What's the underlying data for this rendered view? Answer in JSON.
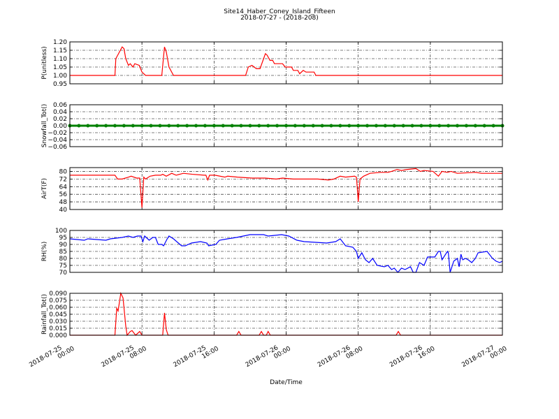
{
  "chart_data": [
    {
      "type": "line",
      "title": "Site14_Haber_Coney_Island_Fifteen",
      "subtitle": "2018-07-27 - (2018-208)",
      "ylabel": "P(unitless)",
      "color": "#ff0000",
      "grid": true,
      "xlim": [
        0,
        48
      ],
      "xticks": [
        0,
        8,
        16,
        24,
        32,
        40,
        48
      ],
      "ylim": [
        0.95,
        1.2
      ],
      "yticks": [
        0.95,
        {
          "value": 1.0,
          "label": "1.00"
        },
        1.05,
        {
          "value": 1.1,
          "label": "1.10"
        },
        1.15,
        {
          "value": 1.2,
          "label": "1.20"
        }
      ],
      "x": [
        0,
        5,
        5.1,
        5.8,
        6.0,
        6.2,
        6.5,
        6.7,
        7.0,
        7.2,
        7.7,
        8.0,
        8.4,
        10.2,
        10.5,
        10.7,
        11.0,
        11.5,
        19.5,
        19.8,
        20.2,
        20.7,
        21.1,
        21.5,
        21.7,
        21.9,
        22.2,
        22.5,
        22.7,
        23.6,
        23.9,
        24.6,
        24.8,
        25.3,
        25.5,
        25.9,
        26.2,
        27.1,
        27.3,
        48
      ],
      "values": [
        1.0,
        1.0,
        1.1,
        1.17,
        1.16,
        1.1,
        1.06,
        1.07,
        1.05,
        1.07,
        1.06,
        1.02,
        1.0,
        1.0,
        1.17,
        1.14,
        1.05,
        1.0,
        1.0,
        1.05,
        1.06,
        1.04,
        1.04,
        1.1,
        1.13,
        1.12,
        1.09,
        1.09,
        1.07,
        1.07,
        1.05,
        1.05,
        1.03,
        1.03,
        1.01,
        1.03,
        1.02,
        1.02,
        1.0,
        1.0
      ]
    },
    {
      "type": "line",
      "ylabel": "Snowfall_Tot()",
      "color": "#008000",
      "marker": "o",
      "grid": true,
      "xlim": [
        0,
        48
      ],
      "xticks": [
        0,
        8,
        16,
        24,
        32,
        40,
        48
      ],
      "ylim": [
        -0.06,
        0.06
      ],
      "yticks": [
        {
          "value": -0.06,
          "label": "−0.06"
        },
        {
          "value": -0.04,
          "label": "−0.04"
        },
        {
          "value": -0.02,
          "label": "−0.02"
        },
        {
          "value": 0,
          "label": "0.00"
        },
        0.02,
        0.04,
        0.06
      ],
      "x": [
        0,
        1,
        2,
        3,
        4,
        5,
        6,
        7,
        8,
        9,
        10,
        11,
        12,
        13,
        14,
        15,
        16,
        17,
        18,
        19,
        20,
        21,
        22,
        23,
        24,
        25,
        26,
        27,
        28,
        29,
        30,
        31,
        32,
        33,
        34,
        35,
        36,
        37,
        38,
        39,
        40,
        41,
        42,
        43,
        44,
        45,
        46,
        47,
        48
      ],
      "values": [
        0,
        0,
        0,
        0,
        0,
        0,
        0,
        0,
        0,
        0,
        0,
        0,
        0,
        0,
        0,
        0,
        0,
        0,
        0,
        0,
        0,
        0,
        0,
        0,
        0,
        0,
        0,
        0,
        0,
        0,
        0,
        0,
        0,
        0,
        0,
        0,
        0,
        0,
        0,
        0,
        0,
        0,
        0,
        0,
        0,
        0,
        0,
        0,
        0
      ]
    },
    {
      "type": "line",
      "ylabel": "AirT(F)",
      "color": "#ff0000",
      "grid": true,
      "xlim": [
        0,
        48
      ],
      "xticks": [
        0,
        8,
        16,
        24,
        32,
        40,
        48
      ],
      "ylim": [
        40,
        84
      ],
      "yticks": [
        40,
        48,
        56,
        64,
        72,
        80
      ],
      "x": [
        0,
        4.8,
        5.0,
        5.3,
        5.8,
        6.5,
        6.8,
        7.4,
        7.75,
        8.0,
        8.2,
        8.4,
        8.9,
        9.5,
        10.1,
        10.3,
        10.7,
        11.3,
        11.8,
        12.6,
        13.6,
        14.9,
        15.1,
        15.3,
        15.5,
        16.1,
        17.2,
        17.5,
        18.6,
        20.2,
        21.7,
        22.9,
        23.6,
        24.8,
        27.5,
        28.7,
        29.3,
        30.0,
        30.6,
        31.6,
        31.8,
        31.9,
        32.0,
        32.2,
        32.6,
        33.3,
        34.5,
        35.3,
        35.7,
        36.3,
        36.8,
        37.4,
        38.4,
        38.9,
        39.3,
        40.3,
        40.9,
        41.3,
        41.9,
        42.3,
        43.0,
        45.0,
        45.7,
        48
      ],
      "values": [
        76,
        76,
        76,
        72,
        72,
        74,
        75,
        73,
        73,
        42,
        74,
        72,
        75,
        76,
        76,
        77,
        75,
        78,
        76,
        78,
        77,
        76,
        76,
        71,
        76,
        76,
        74,
        75,
        74,
        73,
        73,
        72,
        73,
        72,
        72,
        71,
        72,
        75,
        74,
        75,
        74,
        62,
        48,
        72,
        75,
        78,
        79,
        79,
        80,
        82,
        81,
        82,
        83,
        80,
        81,
        80,
        75,
        80,
        79,
        80,
        78,
        79,
        78,
        78
      ]
    },
    {
      "type": "line",
      "ylabel": "RH(%)",
      "color": "#0000ff",
      "grid": true,
      "xlim": [
        0,
        48
      ],
      "xticks": [
        0,
        8,
        16,
        24,
        32,
        40,
        48
      ],
      "ylim": [
        70,
        100
      ],
      "yticks": [
        70,
        75,
        80,
        85,
        90,
        95,
        100
      ],
      "x": [
        0,
        1.6,
        2,
        4,
        4.5,
        5.8,
        6.5,
        7,
        7.5,
        7.9,
        8.1,
        8.3,
        8.8,
        9.2,
        9.5,
        9.8,
        10.2,
        10.4,
        10.8,
        11,
        11.5,
        12.4,
        12.8,
        13.5,
        14.5,
        15.2,
        15.4,
        16.2,
        16.6,
        17.5,
        18.5,
        20,
        21.5,
        22,
        23.5,
        24.3,
        25.2,
        26,
        28.5,
        29.5,
        30,
        30.6,
        31.4,
        31.8,
        32,
        32.4,
        32.8,
        33.2,
        33.6,
        34.1,
        34.9,
        35.3,
        35.7,
        36,
        36.4,
        36.8,
        37.2,
        37.8,
        38.1,
        38.4,
        38.8,
        39.3,
        39.7,
        40.5,
        40.9,
        41.1,
        41.3,
        41.9,
        42.0,
        42.2,
        42.6,
        43.0,
        43.2,
        43.4,
        43.6,
        43.9,
        44.2,
        44.6,
        45.0,
        45.3,
        46.3,
        46.9,
        47.3,
        47.7,
        48
      ],
      "values": [
        94,
        93,
        94,
        93,
        94,
        95,
        96,
        95,
        96,
        96,
        92,
        96,
        93,
        95,
        95,
        90,
        90,
        89,
        94,
        96,
        94,
        89,
        89,
        91,
        92,
        91,
        89,
        90,
        93,
        94,
        95,
        97,
        97,
        96,
        97,
        96,
        93,
        92,
        91,
        92,
        94,
        89,
        88,
        85,
        80,
        84,
        79,
        77,
        80,
        75,
        74,
        75,
        72,
        73,
        70,
        73,
        72,
        74,
        70,
        70,
        77,
        75,
        81,
        81,
        85,
        85,
        79,
        85,
        84,
        70,
        78,
        80,
        74,
        83,
        79,
        80,
        79,
        77,
        80,
        84,
        85,
        80,
        78,
        77,
        78
      ]
    },
    {
      "type": "line",
      "ylabel": "Rainfall_Tot()",
      "xlabel": "Date/Time",
      "color": "#ff0000",
      "grid": true,
      "xlim": [
        0,
        48
      ],
      "xticks": [
        {
          "value": 0,
          "label": "2018-07-25 00:00"
        },
        {
          "value": 8,
          "label": "2018-07-25 08:00"
        },
        {
          "value": 16,
          "label": "2018-07-25 16:00"
        },
        {
          "value": 24,
          "label": "2018-07-26 00:00"
        },
        {
          "value": 32,
          "label": "2018-07-26 08:00"
        },
        {
          "value": 40,
          "label": "2018-07-26 16:00"
        },
        {
          "value": 48,
          "label": "2018-07-27 00:00"
        }
      ],
      "ylim": [
        0,
        0.09
      ],
      "yticks": [
        {
          "value": 0,
          "label": "0.000"
        },
        0.015,
        {
          "value": 0.03,
          "label": "0.030"
        },
        0.045,
        {
          "value": 0.06,
          "label": "0.060"
        },
        0.075,
        {
          "value": 0.09,
          "label": "0.090"
        }
      ],
      "x": [
        0,
        5.0,
        5.2,
        5.35,
        5.65,
        5.9,
        6.2,
        6.35,
        6.7,
        6.9,
        7.3,
        7.75,
        8.0,
        10.3,
        10.5,
        10.7,
        10.9,
        18.5,
        18.75,
        19.0,
        21.0,
        21.25,
        21.5,
        21.8,
        22.0,
        22.25,
        36.2,
        36.45,
        36.7,
        48
      ],
      "values": [
        0,
        0,
        0.058,
        0.052,
        0.09,
        0.08,
        0.02,
        0,
        0.008,
        0.01,
        0,
        0.008,
        0,
        0,
        0.048,
        0.012,
        0,
        0,
        0.008,
        0,
        0,
        0.008,
        0,
        0,
        0.008,
        0,
        0,
        0.008,
        0,
        0
      ]
    }
  ]
}
